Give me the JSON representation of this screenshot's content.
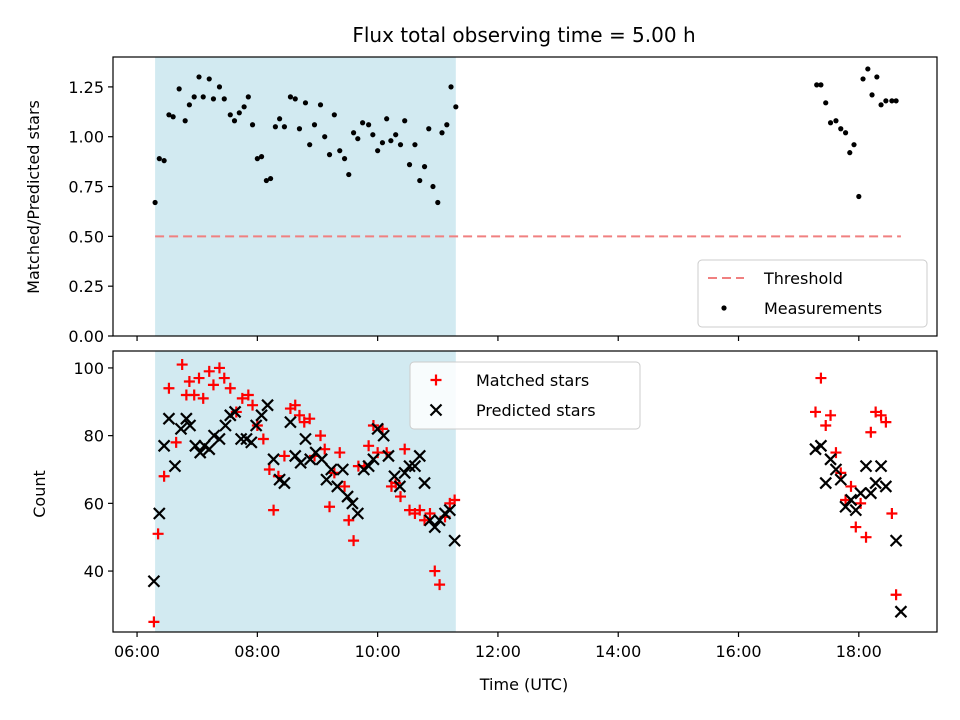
{
  "chart_data": [
    {
      "type": "scatter",
      "panel": "top",
      "title": "Flux total observing time = 5.00 h",
      "ylabel": "Matched/Predicted stars",
      "xlabel": "",
      "ylim": [
        0,
        1.4
      ],
      "yticks": [
        0,
        0.25,
        0.5,
        0.75,
        1.0,
        1.25
      ],
      "ytick_labels": [
        "0.00",
        "0.25",
        "0.50",
        "0.75",
        "1.00",
        "1.25"
      ],
      "xlim": [
        5.6,
        19.3
      ],
      "xticks": [
        6,
        8,
        10,
        12,
        14,
        16,
        18
      ],
      "shaded_span": [
        6.3,
        11.3
      ],
      "shade_color": "#add8e6",
      "legend_position": "lower right",
      "series": [
        {
          "name": "Threshold",
          "kind": "dashed-line",
          "color": "#f08080",
          "x": [
            6.3,
            18.7
          ],
          "y": [
            0.5,
            0.5
          ]
        },
        {
          "name": "Measurements",
          "kind": "dot",
          "color": "#000000",
          "x": [
            6.3,
            6.37,
            6.45,
            6.53,
            6.6,
            6.7,
            6.8,
            6.87,
            6.95,
            7.03,
            7.1,
            7.2,
            7.27,
            7.37,
            7.45,
            7.55,
            7.62,
            7.7,
            7.78,
            7.85,
            7.92,
            8.0,
            8.07,
            8.15,
            8.22,
            8.3,
            8.37,
            8.45,
            8.55,
            8.63,
            8.7,
            8.8,
            8.87,
            8.95,
            9.05,
            9.12,
            9.2,
            9.28,
            9.37,
            9.45,
            9.52,
            9.6,
            9.67,
            9.75,
            9.85,
            9.92,
            10.0,
            10.08,
            10.15,
            10.22,
            10.3,
            10.38,
            10.45,
            10.53,
            10.62,
            10.7,
            10.78,
            10.85,
            10.92,
            11.0,
            11.07,
            11.15,
            11.22,
            11.3,
            17.3,
            17.37,
            17.45,
            17.53,
            17.62,
            17.7,
            17.78,
            17.85,
            17.92,
            18.0,
            18.07,
            18.15,
            18.22,
            18.3,
            18.37,
            18.45,
            18.55,
            18.62
          ],
          "y": [
            0.67,
            0.89,
            0.88,
            1.11,
            1.1,
            1.24,
            1.08,
            1.16,
            1.2,
            1.3,
            1.2,
            1.29,
            1.19,
            1.25,
            1.19,
            1.11,
            1.08,
            1.12,
            1.15,
            1.2,
            1.06,
            0.89,
            0.9,
            0.78,
            0.79,
            1.05,
            1.09,
            1.05,
            1.2,
            1.19,
            1.04,
            1.17,
            0.96,
            1.06,
            1.16,
            1.0,
            0.91,
            1.11,
            0.93,
            0.89,
            0.81,
            1.02,
            0.99,
            1.07,
            1.06,
            1.01,
            0.93,
            0.97,
            1.09,
            0.98,
            1.01,
            0.96,
            1.08,
            0.86,
            0.96,
            0.78,
            0.85,
            1.04,
            0.75,
            0.67,
            1.02,
            1.06,
            1.25,
            1.15,
            1.26,
            1.26,
            1.17,
            1.07,
            1.08,
            1.04,
            1.02,
            0.92,
            0.96,
            0.7,
            1.29,
            1.34,
            1.21,
            1.3,
            1.16,
            1.18,
            1.18,
            1.18
          ]
        }
      ]
    },
    {
      "type": "scatter",
      "panel": "bottom",
      "title": "",
      "ylabel": "Count",
      "xlabel": "Time (UTC)",
      "ylim": [
        22,
        105
      ],
      "yticks": [
        40,
        60,
        80,
        100
      ],
      "ytick_labels": [
        "40",
        "60",
        "80",
        "100"
      ],
      "xlim": [
        5.6,
        19.3
      ],
      "xticks": [
        6,
        8,
        10,
        12,
        14,
        16,
        18
      ],
      "xtick_labels": [
        "06:00",
        "08:00",
        "10:00",
        "12:00",
        "14:00",
        "16:00",
        "18:00"
      ],
      "shaded_span": [
        6.3,
        11.3
      ],
      "shade_color": "#add8e6",
      "legend_position": "upper center",
      "series": [
        {
          "name": "Matched stars",
          "kind": "plus",
          "color": "#ff0000",
          "x": [
            6.28,
            6.35,
            6.45,
            6.53,
            6.65,
            6.75,
            6.82,
            6.87,
            6.95,
            7.03,
            7.1,
            7.2,
            7.27,
            7.37,
            7.45,
            7.55,
            7.65,
            7.75,
            7.85,
            7.92,
            8.0,
            8.1,
            8.2,
            8.27,
            8.35,
            8.45,
            8.55,
            8.63,
            8.7,
            8.78,
            8.87,
            8.95,
            9.05,
            9.12,
            9.2,
            9.28,
            9.37,
            9.45,
            9.52,
            9.6,
            9.68,
            9.78,
            9.85,
            9.93,
            10.0,
            10.08,
            10.15,
            10.23,
            10.3,
            10.38,
            10.45,
            10.53,
            10.62,
            10.7,
            10.78,
            10.87,
            10.95,
            11.03,
            11.12,
            11.2,
            11.28,
            17.28,
            17.37,
            17.45,
            17.53,
            17.62,
            17.7,
            17.78,
            17.87,
            17.95,
            18.03,
            18.12,
            18.2,
            18.28,
            18.37,
            18.45,
            18.55,
            18.62
          ],
          "y": [
            25,
            51,
            68,
            94,
            78,
            101,
            92,
            96,
            92,
            97,
            91,
            99,
            95,
            100,
            97,
            94,
            87,
            91,
            92,
            89,
            83,
            79,
            70,
            58,
            68,
            74,
            88,
            89,
            86,
            84,
            85,
            74,
            80,
            76,
            59,
            69,
            75,
            65,
            55,
            49,
            71,
            71,
            77,
            83,
            75,
            82,
            75,
            65,
            66,
            62,
            76,
            58,
            57,
            58,
            55,
            57,
            40,
            36,
            56,
            60,
            61,
            87,
            97,
            83,
            86,
            75,
            69,
            61,
            65,
            53,
            60,
            50,
            81,
            87,
            86,
            84,
            57,
            33
          ]
        },
        {
          "name": "Predicted stars",
          "kind": "x",
          "color": "#000000",
          "x": [
            6.28,
            6.37,
            6.45,
            6.53,
            6.63,
            6.73,
            6.82,
            6.88,
            6.97,
            7.05,
            7.12,
            7.2,
            7.28,
            7.37,
            7.47,
            7.55,
            7.63,
            7.73,
            7.82,
            7.9,
            7.98,
            8.07,
            8.17,
            8.27,
            8.37,
            8.45,
            8.55,
            8.63,
            8.72,
            8.8,
            8.88,
            8.97,
            9.07,
            9.15,
            9.23,
            9.33,
            9.42,
            9.5,
            9.58,
            9.67,
            9.77,
            9.85,
            9.93,
            10.0,
            10.1,
            10.18,
            10.28,
            10.37,
            10.45,
            10.53,
            10.62,
            10.7,
            10.78,
            10.87,
            10.95,
            11.03,
            11.12,
            11.2,
            11.28,
            17.28,
            17.37,
            17.45,
            17.53,
            17.62,
            17.7,
            17.78,
            17.87,
            17.95,
            18.03,
            18.12,
            18.2,
            18.28,
            18.37,
            18.45,
            18.62,
            18.7
          ],
          "y": [
            37,
            57,
            77,
            85,
            71,
            82,
            85,
            83,
            77,
            75,
            77,
            76,
            80,
            79,
            83,
            86,
            87,
            79,
            79,
            78,
            83,
            86,
            89,
            73,
            67,
            66,
            84,
            74,
            72,
            79,
            73,
            75,
            73,
            67,
            70,
            65,
            70,
            62,
            60,
            57,
            70,
            71,
            73,
            82,
            80,
            74,
            68,
            65,
            69,
            71,
            71,
            74,
            66,
            55,
            53,
            55,
            57,
            58,
            49,
            76,
            77,
            66,
            73,
            70,
            67,
            59,
            61,
            58,
            63,
            71,
            63,
            66,
            71,
            65,
            49,
            28
          ]
        }
      ]
    }
  ]
}
